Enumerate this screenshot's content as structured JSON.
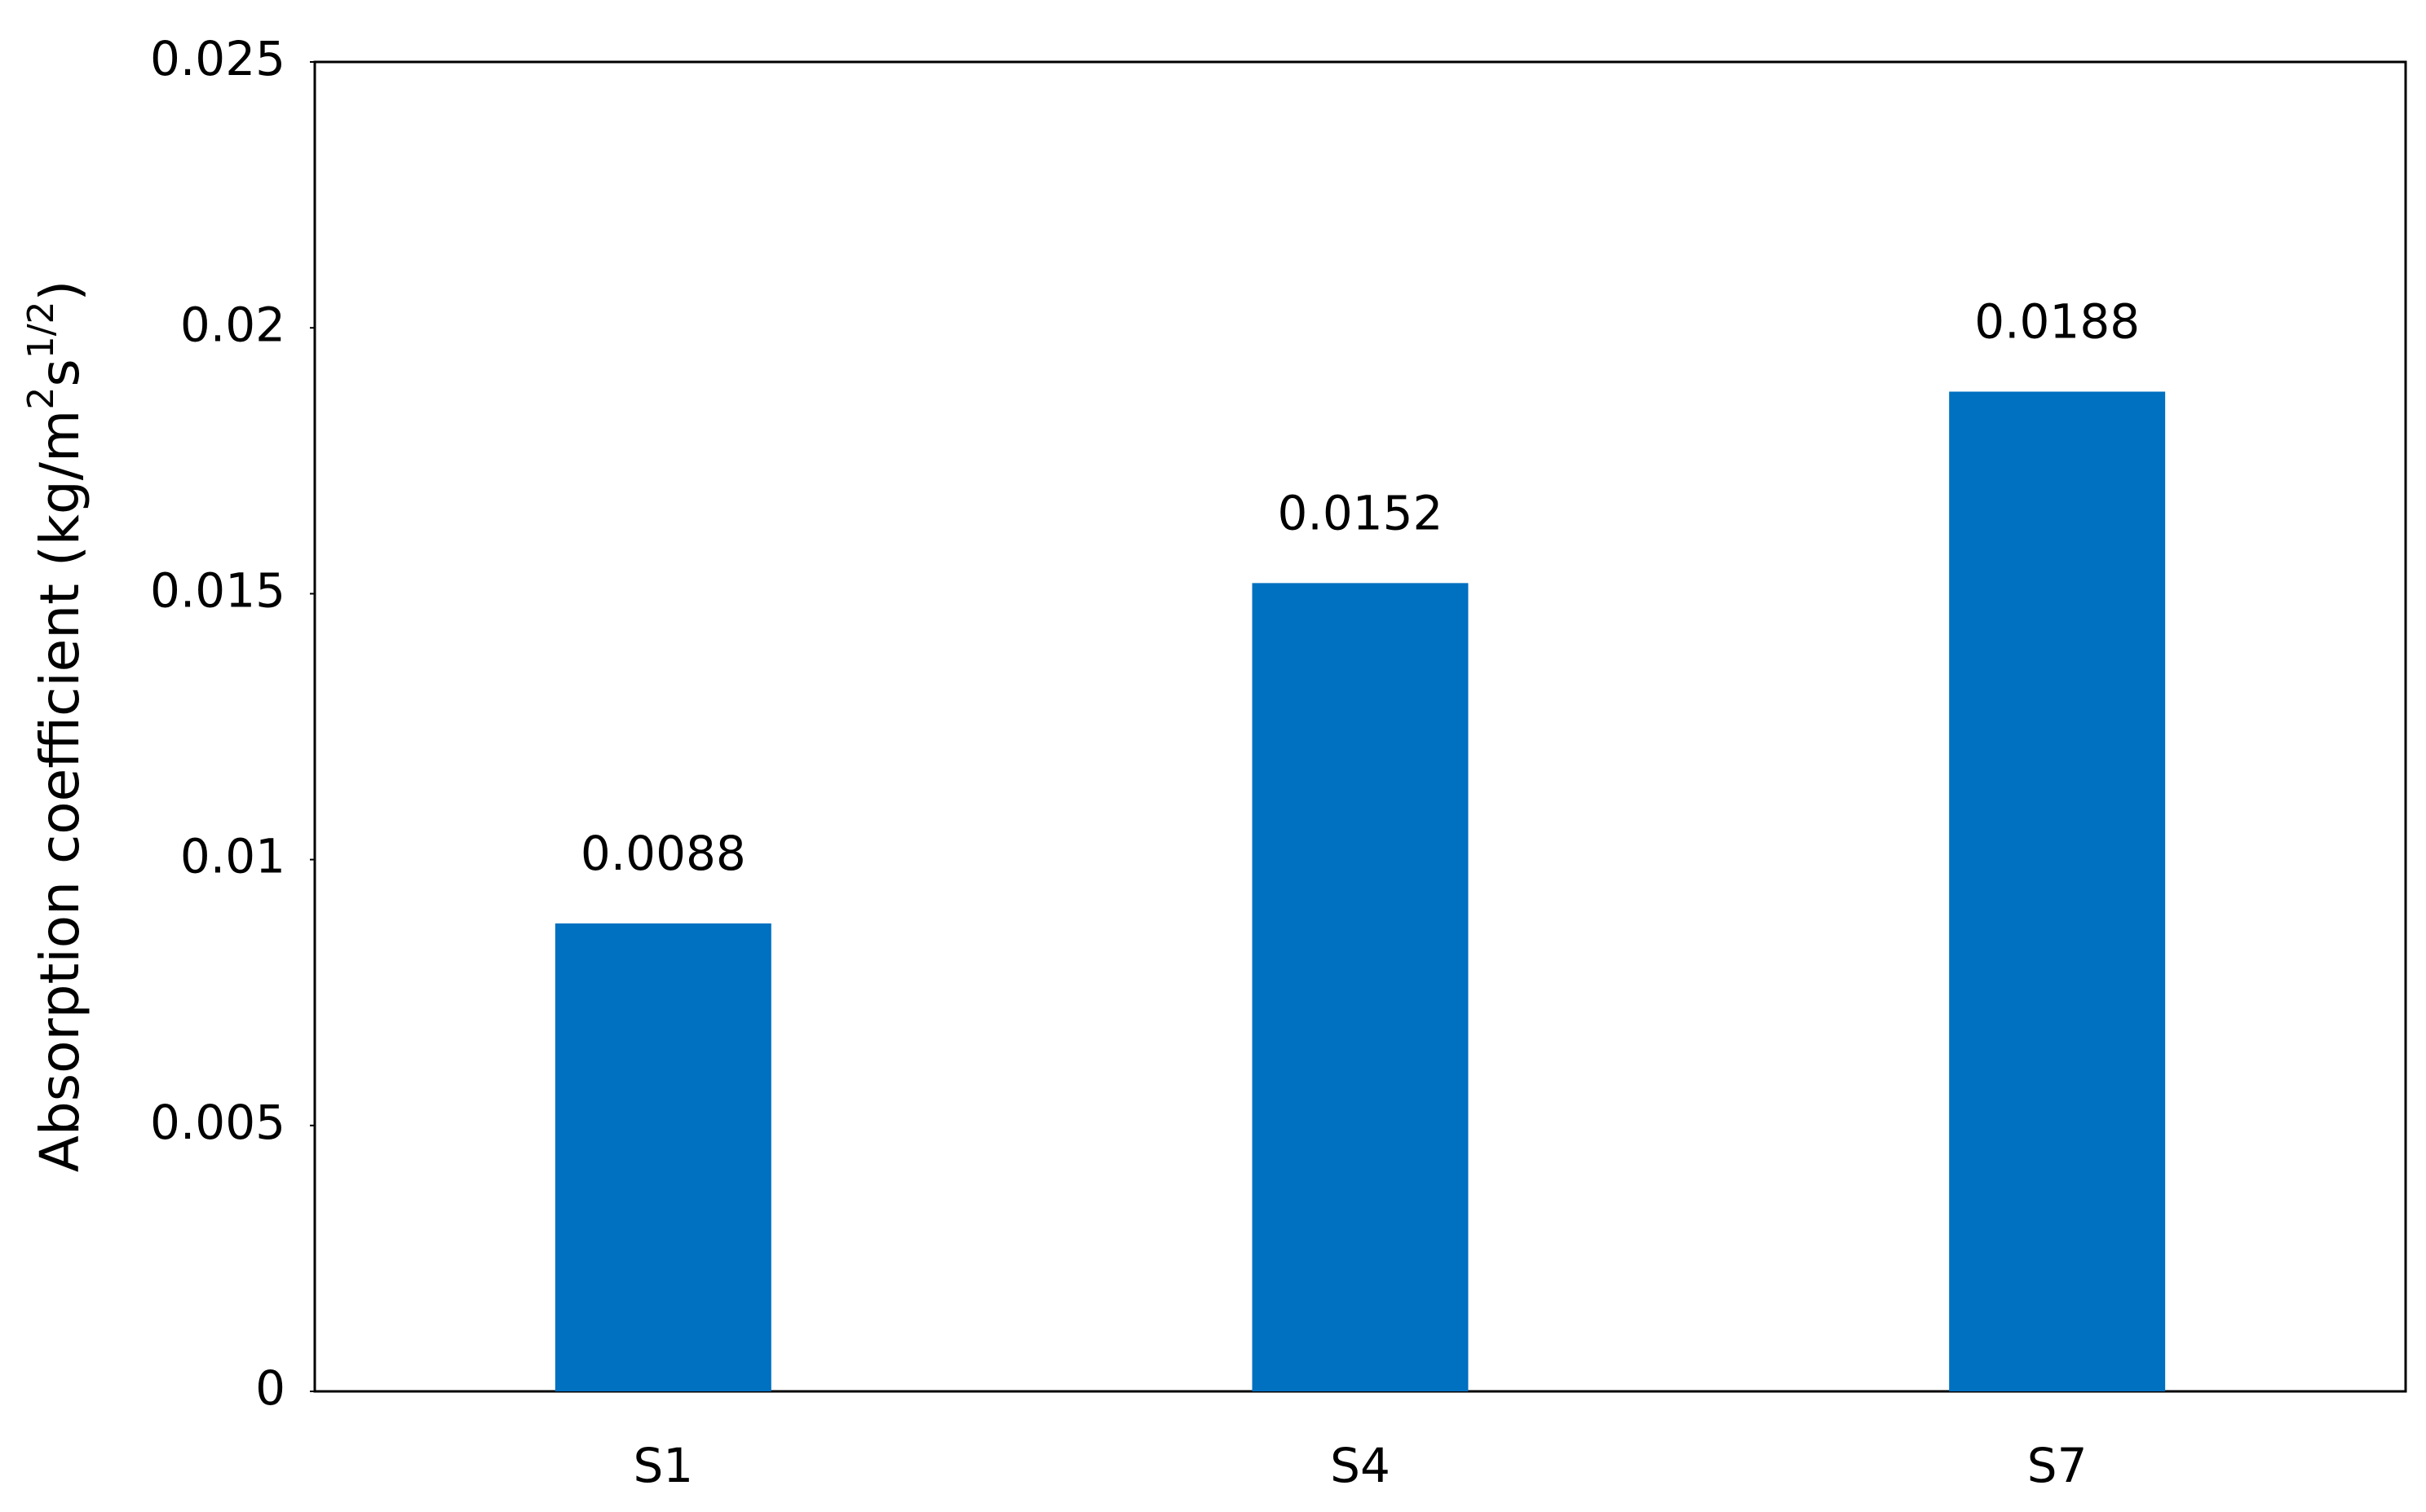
{
  "chart_data": {
    "type": "bar",
    "y_label": [
      "Absorption coefficient (kg/m",
      "2",
      "s",
      "1/2",
      ")"
    ],
    "categories": [
      "S1",
      "S4",
      "S7"
    ],
    "values": [
      0.0088,
      0.0152,
      0.0188
    ],
    "color": "#0070c0",
    "ylim": [
      0,
      0.025
    ],
    "yticks": [
      0,
      0.005,
      0.01,
      0.015,
      0.02,
      0.025
    ],
    "grid": false
  }
}
